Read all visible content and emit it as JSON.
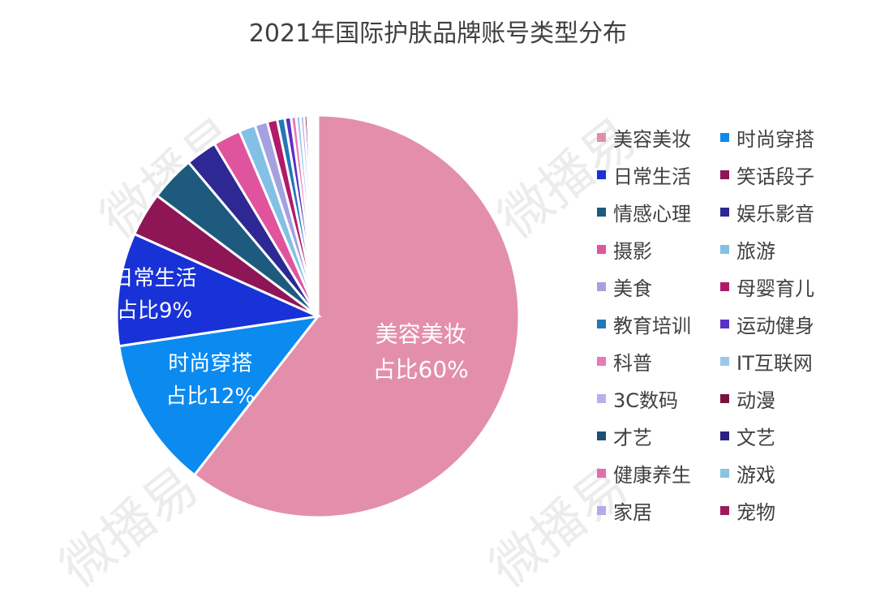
{
  "chart_data": {
    "type": "pie",
    "title": "2021年国际护肤品牌账号类型分布",
    "slices": [
      {
        "label": "美容美妆",
        "value": 60,
        "color": "#e38fab"
      },
      {
        "label": "时尚穿搭",
        "value": 12,
        "color": "#0b8af0"
      },
      {
        "label": "日常生活",
        "value": 9,
        "color": "#1832d8"
      },
      {
        "label": "笑话段子",
        "value": 3.5,
        "color": "#8e1556"
      },
      {
        "label": "情感心理",
        "value": 3.6,
        "color": "#1e5a7e"
      },
      {
        "label": "娱乐影音",
        "value": 2.5,
        "color": "#2e2894"
      },
      {
        "label": "摄影",
        "value": 2.2,
        "color": "#e0549e"
      },
      {
        "label": "旅游",
        "value": 1.3,
        "color": "#82c0e6"
      },
      {
        "label": "美食",
        "value": 1.0,
        "color": "#a5a0e0"
      },
      {
        "label": "母婴育儿",
        "value": 0.8,
        "color": "#b01a68"
      },
      {
        "label": "教育培训",
        "value": 0.6,
        "color": "#2478b4"
      },
      {
        "label": "运动健身",
        "value": 0.5,
        "color": "#5a30c8"
      },
      {
        "label": "科普",
        "value": 0.4,
        "color": "#e77ab8"
      },
      {
        "label": "IT互联网",
        "value": 0.35,
        "color": "#9cc8ea"
      },
      {
        "label": "3C数码",
        "value": 0.3,
        "color": "#b8b0ec"
      },
      {
        "label": "动漫",
        "value": 0.25,
        "color": "#7a1240"
      },
      {
        "label": "才艺",
        "value": 0.2,
        "color": "#1d4f74"
      },
      {
        "label": "文艺",
        "value": 0.18,
        "color": "#2a2080"
      },
      {
        "label": "健康养生",
        "value": 0.15,
        "color": "#e76ab0"
      },
      {
        "label": "游戏",
        "value": 0.12,
        "color": "#8cc2e6"
      },
      {
        "label": "家居",
        "value": 0.1,
        "color": "#b3aaea"
      },
      {
        "label": "宠物",
        "value": 0.08,
        "color": "#9c1a5a"
      }
    ],
    "data_labels": [
      {
        "slice": "美容美妆",
        "lines": [
          "美容美妆",
          "占比60%"
        ]
      },
      {
        "slice": "时尚穿搭",
        "lines": [
          "时尚穿搭",
          "占比12%"
        ]
      },
      {
        "slice": "日常生活",
        "lines": [
          "日常生活",
          "占比9%"
        ]
      }
    ],
    "legend_position": "right"
  },
  "watermark_text": "微播易"
}
